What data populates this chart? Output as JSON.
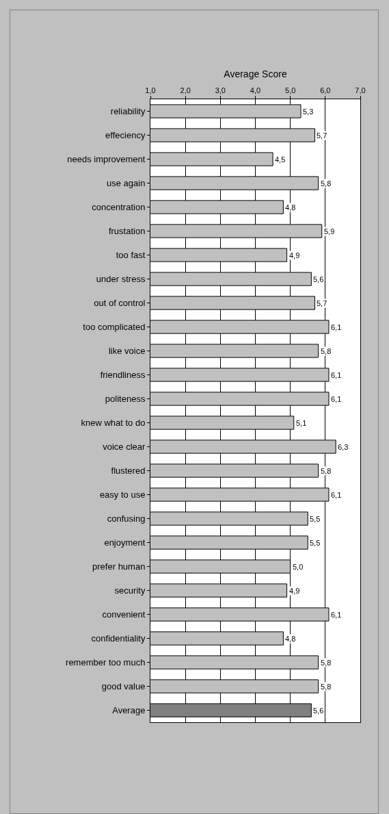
{
  "chart_data": {
    "type": "bar",
    "orientation": "horizontal",
    "xlabel": "Average Score",
    "categories": [
      "reliability",
      "effeciency",
      "needs improvement",
      "use again",
      "concentration",
      "frustation",
      "too fast",
      "under stress",
      "out of control",
      "too complicated",
      "like voice",
      "friendliness",
      "politeness",
      "knew what to do",
      "voice clear",
      "flustered",
      "easy to use",
      "confusing",
      "enjoyment",
      "prefer human",
      "security",
      "convenient",
      "confidentiality",
      "remember too much",
      "good value",
      "Average"
    ],
    "values": [
      5.3,
      5.7,
      4.5,
      5.8,
      4.8,
      5.9,
      4.9,
      5.6,
      5.7,
      6.1,
      5.8,
      6.1,
      6.1,
      5.1,
      6.3,
      5.8,
      6.1,
      5.5,
      5.5,
      5.0,
      4.9,
      6.1,
      4.8,
      5.8,
      5.8,
      5.6
    ],
    "value_labels": [
      "5,3",
      "5,7",
      "4,5",
      "5,8",
      "4,8",
      "5,9",
      "4,9",
      "5,6",
      "5,7",
      "6,1",
      "5,8",
      "6,1",
      "6,1",
      "5,1",
      "6,3",
      "5,8",
      "6,1",
      "5,5",
      "5,5",
      "5,0",
      "4,9",
      "6,1",
      "4,8",
      "5,8",
      "5,8",
      "5,6"
    ],
    "colors": [
      "#c0c0c0",
      "#c0c0c0",
      "#c0c0c0",
      "#c0c0c0",
      "#c0c0c0",
      "#c0c0c0",
      "#c0c0c0",
      "#c0c0c0",
      "#c0c0c0",
      "#c0c0c0",
      "#c0c0c0",
      "#c0c0c0",
      "#c0c0c0",
      "#c0c0c0",
      "#c0c0c0",
      "#c0c0c0",
      "#c0c0c0",
      "#c0c0c0",
      "#c0c0c0",
      "#c0c0c0",
      "#c0c0c0",
      "#c0c0c0",
      "#c0c0c0",
      "#c0c0c0",
      "#c0c0c0",
      "#808080"
    ],
    "xlim": [
      1,
      7
    ],
    "xticks": [
      {
        "value": 1,
        "label": "1,0"
      },
      {
        "value": 2,
        "label": "2,0"
      },
      {
        "value": 3,
        "label": "3,0"
      },
      {
        "value": 4,
        "label": "4,0"
      },
      {
        "value": 5,
        "label": "5,0"
      },
      {
        "value": 6,
        "label": "6,0"
      },
      {
        "value": 7,
        "label": "7,0"
      }
    ],
    "grid": "x",
    "legend": false
  }
}
